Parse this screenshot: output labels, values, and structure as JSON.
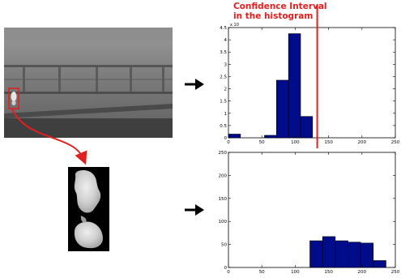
{
  "annotation": {
    "line1": "Confidence Interval",
    "line2": "in the histogram"
  },
  "colors": {
    "bar_fill": "#000c8a",
    "bar_edge": "#000000",
    "highlight": "#e02020"
  },
  "chart_data": [
    {
      "type": "bar",
      "title": "",
      "xlabel": "",
      "ylabel": "",
      "y_multiplier_label": "x 10",
      "xlim": [
        0,
        250
      ],
      "ylim": [
        0,
        4.5
      ],
      "x_ticks": [
        0,
        50,
        100,
        150,
        200,
        250
      ],
      "y_ticks": [
        0,
        0.5,
        1,
        1.5,
        2,
        2.5,
        3,
        3.5,
        4,
        4.5
      ],
      "bin_width": 18,
      "bin_starts": [
        0,
        18,
        54,
        72,
        90,
        108
      ],
      "values": [
        0.15,
        0.0,
        0.1,
        2.35,
        4.25,
        0.87
      ],
      "confidence_interval_x": 133
    },
    {
      "type": "bar",
      "title": "",
      "xlabel": "",
      "ylabel": "",
      "xlim": [
        0,
        250
      ],
      "ylim": [
        0,
        250
      ],
      "x_ticks": [
        0,
        50,
        100,
        150,
        200,
        250
      ],
      "y_ticks": [
        0,
        50,
        100,
        150,
        200,
        250
      ],
      "bin_width": 19,
      "bin_starts": [
        122,
        141,
        160,
        179,
        198,
        217
      ],
      "values": [
        58,
        67,
        58,
        55,
        53,
        15
      ]
    }
  ]
}
